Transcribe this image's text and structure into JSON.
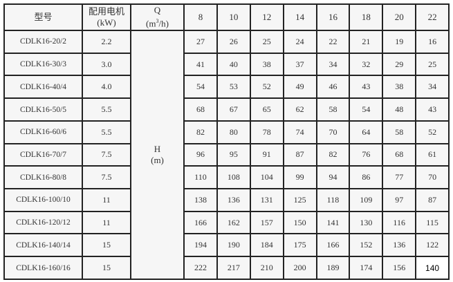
{
  "header": {
    "model": "型号",
    "motor": "配用电机",
    "motor_unit": "(kW)",
    "flow": "Q",
    "flow_unit_pre": "(m",
    "flow_unit_sup": "3",
    "flow_unit_post": "/h)",
    "flow_values": [
      "8",
      "10",
      "12",
      "14",
      "16",
      "18",
      "20",
      "22"
    ]
  },
  "head_label": "H",
  "head_unit": "(m)",
  "rows": [
    {
      "model": "CDLK16-20/2",
      "power": "2.2",
      "heads": [
        "27",
        "26",
        "25",
        "24",
        "22",
        "21",
        "19",
        "16"
      ]
    },
    {
      "model": "CDLK16-30/3",
      "power": "3.0",
      "heads": [
        "41",
        "40",
        "38",
        "37",
        "34",
        "32",
        "29",
        "25"
      ]
    },
    {
      "model": "CDLK16-40/4",
      "power": "4.0",
      "heads": [
        "54",
        "53",
        "52",
        "49",
        "46",
        "43",
        "38",
        "34"
      ]
    },
    {
      "model": "CDLK16-50/5",
      "power": "5.5",
      "heads": [
        "68",
        "67",
        "65",
        "62",
        "58",
        "54",
        "48",
        "43"
      ]
    },
    {
      "model": "CDLK16-60/6",
      "power": "5.5",
      "heads": [
        "82",
        "80",
        "78",
        "74",
        "70",
        "64",
        "58",
        "52"
      ]
    },
    {
      "model": "CDLK16-70/7",
      "power": "7.5",
      "heads": [
        "96",
        "95",
        "91",
        "87",
        "82",
        "76",
        "68",
        "61"
      ]
    },
    {
      "model": "CDLK16-80/8",
      "power": "7.5",
      "heads": [
        "110",
        "108",
        "104",
        "99",
        "94",
        "86",
        "77",
        "70"
      ]
    },
    {
      "model": "CDLK16-100/10",
      "power": "11",
      "heads": [
        "138",
        "136",
        "131",
        "125",
        "118",
        "109",
        "97",
        "87"
      ]
    },
    {
      "model": "CDLK16-120/12",
      "power": "11",
      "heads": [
        "166",
        "162",
        "157",
        "150",
        "141",
        "130",
        "116",
        "115"
      ]
    },
    {
      "model": "CDLK16-140/14",
      "power": "15",
      "heads": [
        "194",
        "190",
        "184",
        "175",
        "166",
        "152",
        "136",
        "122"
      ]
    },
    {
      "model": "CDLK16-160/16",
      "power": "15",
      "heads": [
        "222",
        "217",
        "210",
        "200",
        "189",
        "174",
        "156",
        "140"
      ]
    }
  ]
}
